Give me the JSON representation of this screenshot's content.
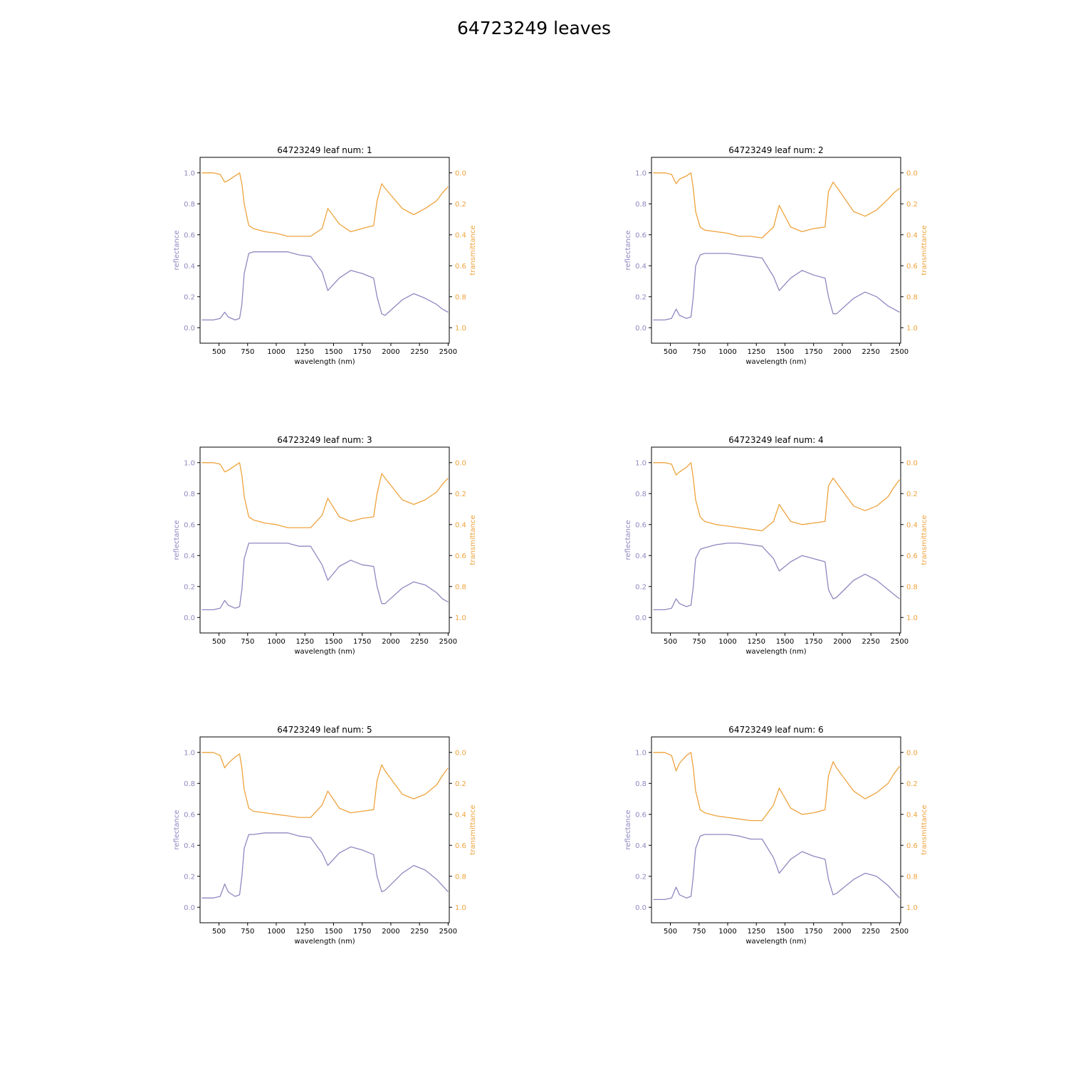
{
  "figure": {
    "title": "64723249 leaves"
  },
  "colors": {
    "reflectance": "#8e88c0",
    "transmittance": "#eea33d",
    "axes": "#000000"
  },
  "chart_data": [
    {
      "type": "line",
      "title": "64723249 leaf num: 1",
      "xlabel": "wavelength (nm)",
      "ylabel": "reflectance",
      "y2label": "transmittance",
      "xlim": [
        335,
        2510
      ],
      "ylim": [
        -0.1,
        1.1
      ],
      "y2lim": [
        1.1,
        -0.1
      ],
      "y2_inverted": true,
      "xticks": [
        500,
        750,
        1000,
        1250,
        1500,
        1750,
        2000,
        2250,
        2500
      ],
      "yticks": [
        0.0,
        0.2,
        0.4,
        0.6,
        0.8,
        1.0
      ],
      "y2ticks": [
        0.0,
        0.2,
        0.4,
        0.6,
        0.8,
        1.0
      ],
      "series": [
        {
          "name": "reflectance",
          "axis": "left",
          "x": [
            350,
            450,
            510,
            550,
            580,
            640,
            680,
            700,
            720,
            760,
            800,
            900,
            1000,
            1100,
            1200,
            1300,
            1400,
            1450,
            1550,
            1650,
            1750,
            1850,
            1880,
            1920,
            1950,
            2100,
            2200,
            2300,
            2400,
            2450,
            2500
          ],
          "y": [
            0.05,
            0.05,
            0.06,
            0.1,
            0.07,
            0.05,
            0.06,
            0.15,
            0.35,
            0.48,
            0.49,
            0.49,
            0.49,
            0.49,
            0.47,
            0.46,
            0.36,
            0.24,
            0.32,
            0.37,
            0.35,
            0.32,
            0.2,
            0.09,
            0.08,
            0.18,
            0.22,
            0.19,
            0.15,
            0.12,
            0.1
          ]
        },
        {
          "name": "transmittance",
          "axis": "right",
          "x": [
            350,
            450,
            510,
            550,
            580,
            640,
            680,
            700,
            720,
            760,
            800,
            900,
            1000,
            1100,
            1200,
            1300,
            1400,
            1450,
            1550,
            1650,
            1750,
            1850,
            1880,
            1920,
            1950,
            2100,
            2200,
            2300,
            2400,
            2450,
            2500
          ],
          "y": [
            0.0,
            0.0,
            0.01,
            0.06,
            0.05,
            0.02,
            0.0,
            0.07,
            0.2,
            0.34,
            0.36,
            0.38,
            0.39,
            0.41,
            0.41,
            0.41,
            0.36,
            0.23,
            0.33,
            0.38,
            0.36,
            0.34,
            0.18,
            0.07,
            0.1,
            0.23,
            0.27,
            0.23,
            0.18,
            0.13,
            0.09
          ]
        }
      ]
    },
    {
      "type": "line",
      "title": "64723249 leaf num: 2",
      "xlabel": "wavelength (nm)",
      "ylabel": "reflectance",
      "y2label": "transmittance",
      "xlim": [
        335,
        2510
      ],
      "ylim": [
        -0.1,
        1.1
      ],
      "y2lim": [
        1.1,
        -0.1
      ],
      "y2_inverted": true,
      "xticks": [
        500,
        750,
        1000,
        1250,
        1500,
        1750,
        2000,
        2250,
        2500
      ],
      "yticks": [
        0.0,
        0.2,
        0.4,
        0.6,
        0.8,
        1.0
      ],
      "y2ticks": [
        0.0,
        0.2,
        0.4,
        0.6,
        0.8,
        1.0
      ],
      "series": [
        {
          "name": "reflectance",
          "axis": "left",
          "x": [
            350,
            450,
            510,
            550,
            580,
            640,
            680,
            700,
            720,
            760,
            800,
            900,
            1000,
            1100,
            1200,
            1300,
            1400,
            1450,
            1550,
            1650,
            1750,
            1850,
            1880,
            1920,
            1950,
            2100,
            2200,
            2300,
            2400,
            2450,
            2500
          ],
          "y": [
            0.05,
            0.05,
            0.06,
            0.12,
            0.08,
            0.06,
            0.07,
            0.2,
            0.4,
            0.47,
            0.48,
            0.48,
            0.48,
            0.47,
            0.46,
            0.45,
            0.33,
            0.24,
            0.32,
            0.37,
            0.34,
            0.32,
            0.2,
            0.09,
            0.09,
            0.19,
            0.23,
            0.2,
            0.14,
            0.12,
            0.1
          ]
        },
        {
          "name": "transmittance",
          "axis": "right",
          "x": [
            350,
            450,
            510,
            550,
            580,
            640,
            680,
            700,
            720,
            760,
            800,
            900,
            1000,
            1100,
            1200,
            1300,
            1400,
            1450,
            1550,
            1650,
            1750,
            1850,
            1880,
            1920,
            1950,
            2100,
            2200,
            2300,
            2400,
            2450,
            2500
          ],
          "y": [
            0.0,
            0.0,
            0.01,
            0.07,
            0.04,
            0.02,
            0.0,
            0.1,
            0.25,
            0.35,
            0.37,
            0.38,
            0.39,
            0.41,
            0.41,
            0.42,
            0.35,
            0.21,
            0.35,
            0.38,
            0.36,
            0.35,
            0.12,
            0.06,
            0.09,
            0.25,
            0.28,
            0.24,
            0.17,
            0.13,
            0.1
          ]
        }
      ]
    },
    {
      "type": "line",
      "title": "64723249 leaf num: 3",
      "xlabel": "wavelength (nm)",
      "ylabel": "reflectance",
      "y2label": "transmittance",
      "xlim": [
        335,
        2510
      ],
      "ylim": [
        -0.1,
        1.1
      ],
      "y2lim": [
        1.1,
        -0.1
      ],
      "y2_inverted": true,
      "xticks": [
        500,
        750,
        1000,
        1250,
        1500,
        1750,
        2000,
        2250,
        2500
      ],
      "yticks": [
        0.0,
        0.2,
        0.4,
        0.6,
        0.8,
        1.0
      ],
      "y2ticks": [
        0.0,
        0.2,
        0.4,
        0.6,
        0.8,
        1.0
      ],
      "series": [
        {
          "name": "reflectance",
          "axis": "left",
          "x": [
            350,
            450,
            510,
            550,
            580,
            640,
            680,
            700,
            720,
            760,
            800,
            900,
            1000,
            1100,
            1200,
            1300,
            1400,
            1450,
            1550,
            1650,
            1750,
            1850,
            1880,
            1920,
            1950,
            2100,
            2200,
            2300,
            2400,
            2450,
            2500
          ],
          "y": [
            0.05,
            0.05,
            0.06,
            0.11,
            0.08,
            0.06,
            0.07,
            0.18,
            0.38,
            0.48,
            0.48,
            0.48,
            0.48,
            0.48,
            0.46,
            0.46,
            0.34,
            0.24,
            0.33,
            0.37,
            0.34,
            0.33,
            0.2,
            0.09,
            0.09,
            0.19,
            0.23,
            0.21,
            0.16,
            0.12,
            0.1
          ]
        },
        {
          "name": "transmittance",
          "axis": "right",
          "x": [
            350,
            450,
            510,
            550,
            580,
            640,
            680,
            700,
            720,
            760,
            800,
            900,
            1000,
            1100,
            1200,
            1300,
            1400,
            1450,
            1550,
            1650,
            1750,
            1850,
            1880,
            1920,
            1950,
            2100,
            2200,
            2300,
            2400,
            2450,
            2500
          ],
          "y": [
            0.0,
            0.0,
            0.01,
            0.06,
            0.05,
            0.02,
            0.0,
            0.08,
            0.22,
            0.35,
            0.37,
            0.39,
            0.4,
            0.42,
            0.42,
            0.42,
            0.34,
            0.23,
            0.35,
            0.38,
            0.36,
            0.35,
            0.2,
            0.07,
            0.1,
            0.24,
            0.27,
            0.24,
            0.19,
            0.14,
            0.1
          ]
        }
      ]
    },
    {
      "type": "line",
      "title": "64723249 leaf num: 4",
      "xlabel": "wavelength (nm)",
      "ylabel": "reflectance",
      "y2label": "transmittance",
      "xlim": [
        335,
        2510
      ],
      "ylim": [
        -0.1,
        1.1
      ],
      "y2lim": [
        1.1,
        -0.1
      ],
      "y2_inverted": true,
      "xticks": [
        500,
        750,
        1000,
        1250,
        1500,
        1750,
        2000,
        2250,
        2500
      ],
      "yticks": [
        0.0,
        0.2,
        0.4,
        0.6,
        0.8,
        1.0
      ],
      "y2ticks": [
        0.0,
        0.2,
        0.4,
        0.6,
        0.8,
        1.0
      ],
      "series": [
        {
          "name": "reflectance",
          "axis": "left",
          "x": [
            350,
            450,
            510,
            550,
            580,
            640,
            680,
            700,
            720,
            760,
            800,
            900,
            1000,
            1100,
            1200,
            1300,
            1400,
            1450,
            1550,
            1650,
            1750,
            1850,
            1880,
            1920,
            1950,
            2100,
            2200,
            2300,
            2400,
            2450,
            2500
          ],
          "y": [
            0.05,
            0.05,
            0.06,
            0.12,
            0.09,
            0.07,
            0.08,
            0.2,
            0.38,
            0.44,
            0.45,
            0.47,
            0.48,
            0.48,
            0.47,
            0.46,
            0.38,
            0.3,
            0.36,
            0.4,
            0.38,
            0.36,
            0.18,
            0.12,
            0.13,
            0.24,
            0.28,
            0.24,
            0.18,
            0.15,
            0.12
          ]
        },
        {
          "name": "transmittance",
          "axis": "right",
          "x": [
            350,
            450,
            510,
            550,
            580,
            640,
            680,
            700,
            720,
            760,
            800,
            900,
            1000,
            1100,
            1200,
            1300,
            1400,
            1450,
            1550,
            1650,
            1750,
            1850,
            1880,
            1920,
            1950,
            2100,
            2200,
            2300,
            2400,
            2450,
            2500
          ],
          "y": [
            0.0,
            0.0,
            0.01,
            0.08,
            0.06,
            0.03,
            0.0,
            0.1,
            0.24,
            0.35,
            0.38,
            0.4,
            0.41,
            0.42,
            0.43,
            0.44,
            0.38,
            0.27,
            0.38,
            0.4,
            0.39,
            0.38,
            0.15,
            0.1,
            0.13,
            0.28,
            0.31,
            0.28,
            0.22,
            0.16,
            0.11
          ]
        }
      ]
    },
    {
      "type": "line",
      "title": "64723249 leaf num: 5",
      "xlabel": "wavelength (nm)",
      "ylabel": "reflectance",
      "y2label": "transmittance",
      "xlim": [
        335,
        2510
      ],
      "ylim": [
        -0.1,
        1.1
      ],
      "y2lim": [
        1.1,
        -0.1
      ],
      "y2_inverted": true,
      "xticks": [
        500,
        750,
        1000,
        1250,
        1500,
        1750,
        2000,
        2250,
        2500
      ],
      "yticks": [
        0.0,
        0.2,
        0.4,
        0.6,
        0.8,
        1.0
      ],
      "y2ticks": [
        0.0,
        0.2,
        0.4,
        0.6,
        0.8,
        1.0
      ],
      "series": [
        {
          "name": "reflectance",
          "axis": "left",
          "x": [
            350,
            450,
            510,
            550,
            580,
            640,
            680,
            700,
            720,
            760,
            800,
            900,
            1000,
            1100,
            1200,
            1300,
            1400,
            1450,
            1550,
            1650,
            1750,
            1850,
            1880,
            1920,
            1950,
            2100,
            2200,
            2300,
            2400,
            2450,
            2500
          ],
          "y": [
            0.06,
            0.06,
            0.07,
            0.15,
            0.1,
            0.07,
            0.08,
            0.2,
            0.38,
            0.47,
            0.47,
            0.48,
            0.48,
            0.48,
            0.46,
            0.45,
            0.35,
            0.27,
            0.35,
            0.39,
            0.37,
            0.34,
            0.2,
            0.1,
            0.11,
            0.22,
            0.27,
            0.24,
            0.18,
            0.14,
            0.1
          ]
        },
        {
          "name": "transmittance",
          "axis": "right",
          "x": [
            350,
            450,
            510,
            550,
            580,
            640,
            680,
            700,
            720,
            760,
            800,
            900,
            1000,
            1100,
            1200,
            1300,
            1400,
            1450,
            1550,
            1650,
            1750,
            1850,
            1880,
            1920,
            1950,
            2100,
            2200,
            2300,
            2400,
            2450,
            2500
          ],
          "y": [
            0.0,
            0.0,
            0.02,
            0.1,
            0.07,
            0.03,
            0.01,
            0.1,
            0.24,
            0.36,
            0.38,
            0.39,
            0.4,
            0.41,
            0.42,
            0.42,
            0.34,
            0.25,
            0.36,
            0.39,
            0.38,
            0.37,
            0.18,
            0.08,
            0.12,
            0.27,
            0.3,
            0.27,
            0.21,
            0.15,
            0.1
          ]
        }
      ]
    },
    {
      "type": "line",
      "title": "64723249 leaf num: 6",
      "xlabel": "wavelength (nm)",
      "ylabel": "reflectance",
      "y2label": "transmittance",
      "xlim": [
        335,
        2510
      ],
      "ylim": [
        -0.1,
        1.1
      ],
      "y2lim": [
        1.1,
        -0.1
      ],
      "y2_inverted": true,
      "xticks": [
        500,
        750,
        1000,
        1250,
        1500,
        1750,
        2000,
        2250,
        2500
      ],
      "yticks": [
        0.0,
        0.2,
        0.4,
        0.6,
        0.8,
        1.0
      ],
      "y2ticks": [
        0.0,
        0.2,
        0.4,
        0.6,
        0.8,
        1.0
      ],
      "series": [
        {
          "name": "reflectance",
          "axis": "left",
          "x": [
            350,
            450,
            510,
            550,
            580,
            640,
            680,
            700,
            720,
            760,
            800,
            900,
            1000,
            1100,
            1200,
            1300,
            1400,
            1450,
            1550,
            1650,
            1750,
            1850,
            1880,
            1920,
            1950,
            2100,
            2200,
            2300,
            2400,
            2450,
            2500
          ],
          "y": [
            0.05,
            0.05,
            0.06,
            0.13,
            0.08,
            0.06,
            0.07,
            0.2,
            0.38,
            0.46,
            0.47,
            0.47,
            0.47,
            0.46,
            0.44,
            0.44,
            0.32,
            0.22,
            0.31,
            0.36,
            0.33,
            0.31,
            0.18,
            0.08,
            0.09,
            0.18,
            0.22,
            0.2,
            0.14,
            0.1,
            0.06
          ]
        },
        {
          "name": "transmittance",
          "axis": "right",
          "x": [
            350,
            450,
            510,
            550,
            580,
            640,
            680,
            700,
            720,
            760,
            800,
            900,
            1000,
            1100,
            1200,
            1300,
            1400,
            1450,
            1550,
            1650,
            1750,
            1850,
            1880,
            1920,
            1950,
            2100,
            2200,
            2300,
            2400,
            2450,
            2500
          ],
          "y": [
            0.0,
            0.0,
            0.02,
            0.12,
            0.07,
            0.02,
            0.0,
            0.1,
            0.25,
            0.37,
            0.39,
            0.41,
            0.42,
            0.43,
            0.44,
            0.44,
            0.34,
            0.23,
            0.36,
            0.4,
            0.39,
            0.37,
            0.15,
            0.06,
            0.1,
            0.25,
            0.3,
            0.26,
            0.2,
            0.14,
            0.09
          ]
        }
      ]
    }
  ]
}
